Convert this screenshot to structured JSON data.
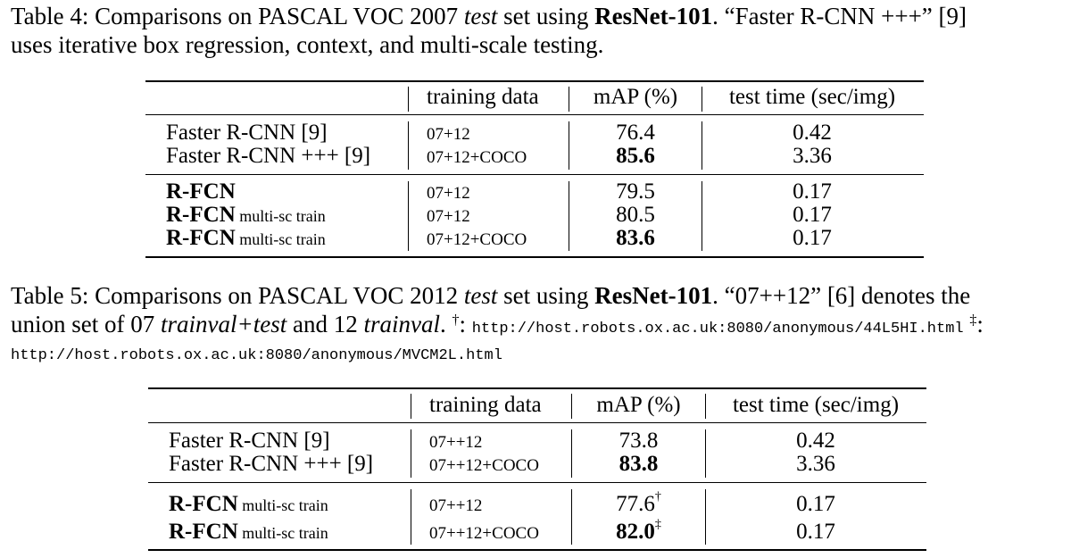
{
  "table4": {
    "caption": {
      "pre": "Table 4: Comparisons on PASCAL VOC 2007 ",
      "test": "test",
      "mid": " set using ",
      "bold": "ResNet-101",
      "post": ". “Faster R-CNN +++” [9]",
      "line2": "uses iterative box regression, context, and multi-scale testing."
    },
    "headers": {
      "training": "training data",
      "map": "mAP (%)",
      "time": "test time (sec/img)"
    },
    "rows": [
      {
        "method": "Faster R-CNN [9]",
        "suffix": "",
        "training": "07+12",
        "map": "76.4",
        "map_sup": "",
        "time": "0.42"
      },
      {
        "method": "Faster R-CNN +++ [9]",
        "suffix": "",
        "training": "07+12+COCO",
        "map": "85.6",
        "map_sup": "",
        "time": "3.36"
      },
      {
        "method": "R-FCN",
        "suffix": "",
        "training": "07+12",
        "map": "79.5",
        "map_sup": "",
        "time": "0.17"
      },
      {
        "method": "R-FCN",
        "suffix": " multi-sc train",
        "training": "07+12",
        "map": "80.5",
        "map_sup": "",
        "time": "0.17"
      },
      {
        "method": "R-FCN",
        "suffix": " multi-sc train",
        "training": "07+12+COCO",
        "map": "83.6",
        "map_sup": "",
        "time": "0.17"
      }
    ]
  },
  "table5": {
    "caption": {
      "pre": "Table 5: Comparisons on PASCAL VOC 2012 ",
      "test": "test",
      "mid": " set using ",
      "bold": "ResNet-101",
      "post": ". “07++12” [6] denotes the",
      "line2_pre": "union set of 07 ",
      "line2_it1": "trainval+test",
      "line2_mid": " and 12 ",
      "line2_it2": "trainval",
      "line2_post": ". ",
      "dagger": "†",
      "colon": ":",
      "url1": "http://host.robots.ox.ac.uk:8080/anonymous/44L5HI.html",
      "ddagger": "‡",
      "url2": "http://host.robots.ox.ac.uk:8080/anonymous/MVCM2L.html"
    },
    "headers": {
      "training": "training data",
      "map": "mAP (%)",
      "time": "test time (sec/img)"
    },
    "rows": [
      {
        "method": "Faster R-CNN [9]",
        "suffix": "",
        "training": "07++12",
        "map": "73.8",
        "map_sup": "",
        "time": "0.42"
      },
      {
        "method": "Faster R-CNN +++ [9]",
        "suffix": "",
        "training": "07++12+COCO",
        "map": "83.8",
        "map_sup": "",
        "time": "3.36"
      },
      {
        "method": "R-FCN",
        "suffix": " multi-sc train",
        "training": "07++12",
        "map": "77.6",
        "map_sup": "†",
        "time": "0.17"
      },
      {
        "method": "R-FCN",
        "suffix": " multi-sc train",
        "training": "07++12+COCO",
        "map": "82.0",
        "map_sup": "‡",
        "time": "0.17"
      }
    ]
  }
}
